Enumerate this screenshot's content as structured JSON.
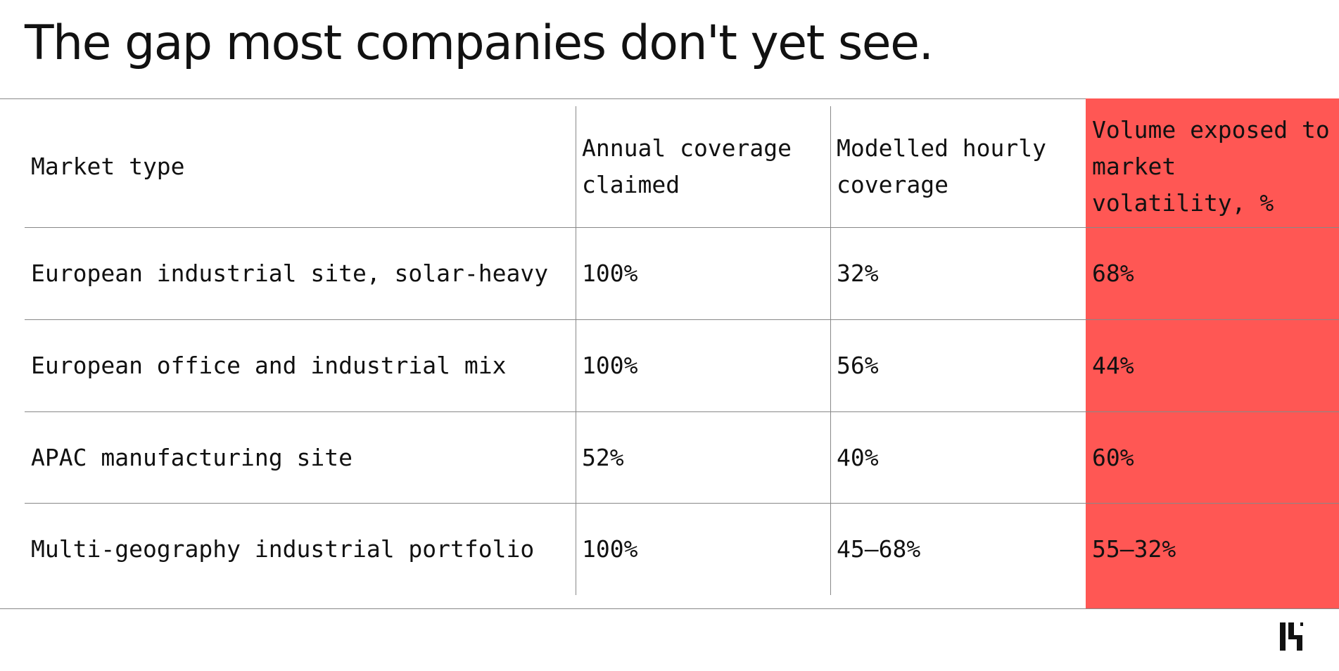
{
  "title": "The gap most companies don't yet see.",
  "table": {
    "headers": [
      "Market type",
      "Annual coverage claimed",
      "Modelled hourly coverage",
      "Volume exposed to market volatility, %"
    ],
    "rows": [
      [
        "European industrial site, solar-heavy",
        "100%",
        "32%",
        "68%"
      ],
      [
        "European office and industrial mix",
        "100%",
        "56%",
        "44%"
      ],
      [
        "APAC manufacturing site",
        "52%",
        "40%",
        "60%"
      ],
      [
        "Multi-geography industrial portfolio",
        "100%",
        "45–68%",
        "55–32%"
      ]
    ]
  },
  "colors": {
    "highlight_column": "#ff5754",
    "rule": "#888888",
    "text": "#111111"
  },
  "logo": {
    "icon": "brand-logo-icon"
  }
}
